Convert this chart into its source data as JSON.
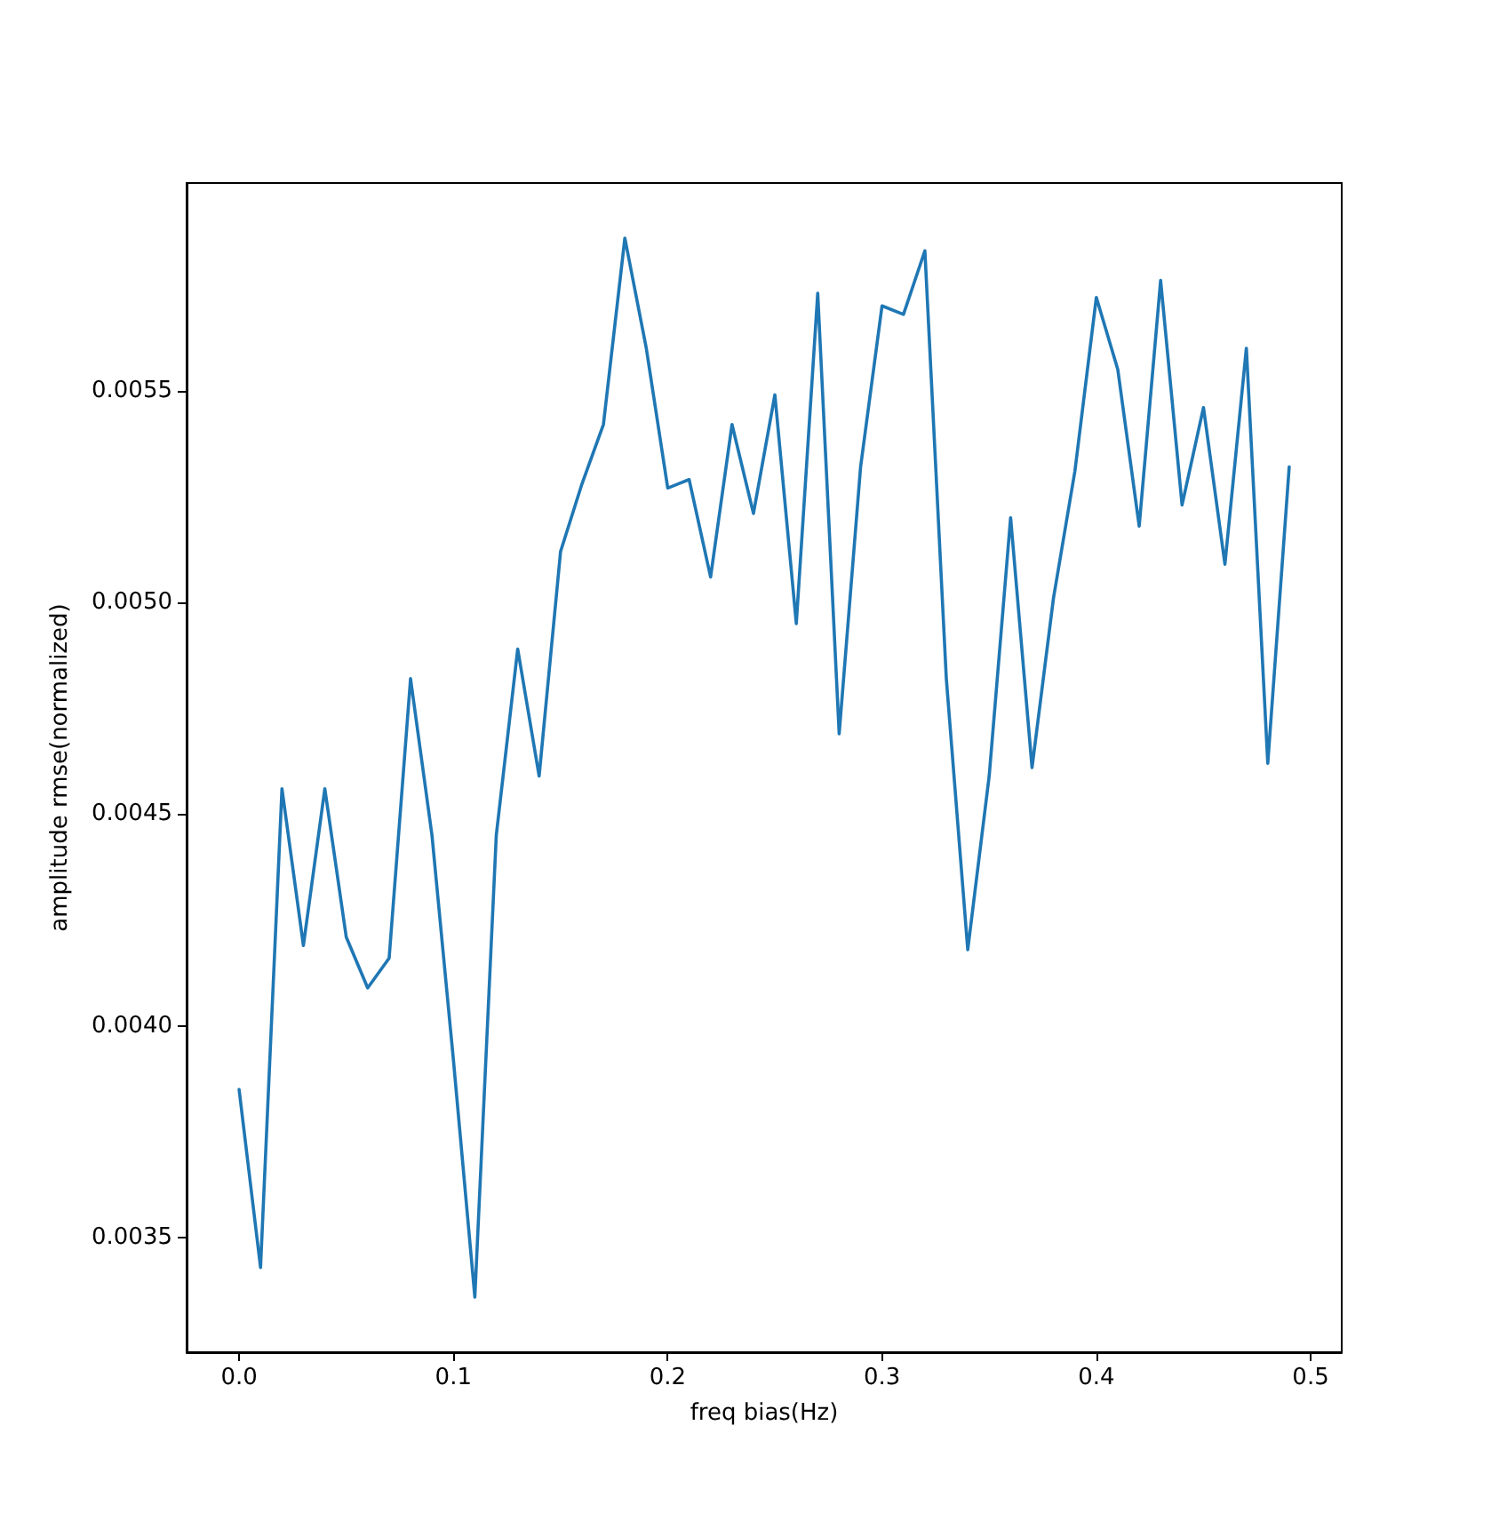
{
  "chart_data": {
    "type": "line",
    "xlabel": "freq bias(Hz)",
    "ylabel": "amplitude rmse(normalized)",
    "x": [
      0,
      0.01,
      0.02,
      0.03,
      0.04,
      0.05,
      0.06,
      0.07,
      0.08,
      0.09,
      0.1,
      0.11,
      0.12,
      0.13,
      0.14,
      0.15,
      0.16,
      0.17,
      0.18,
      0.19,
      0.2,
      0.21,
      0.22,
      0.23,
      0.24,
      0.25,
      0.26,
      0.27,
      0.28,
      0.29,
      0.3,
      0.31,
      0.32,
      0.33,
      0.34,
      0.35,
      0.36,
      0.37,
      0.38,
      0.39,
      0.4,
      0.41,
      0.42,
      0.43,
      0.44,
      0.45,
      0.46,
      0.47,
      0.48,
      0.49
    ],
    "series": [
      {
        "color": "#1f77b4",
        "values": [
          0.00385,
          0.00343,
          0.00456,
          0.00419,
          0.00456,
          0.00421,
          0.00409,
          0.00416,
          0.00482,
          0.00445,
          0.00392,
          0.00336,
          0.00445,
          0.00489,
          0.00459,
          0.00512,
          0.00528,
          0.00542,
          0.00586,
          0.0056,
          0.00527,
          0.00529,
          0.00506,
          0.00542,
          0.00521,
          0.00549,
          0.00495,
          0.00573,
          0.00469,
          0.00532,
          0.0057,
          0.00568,
          0.00583,
          0.00482,
          0.00418,
          0.00459,
          0.0052,
          0.00461,
          0.00501,
          0.00531,
          0.00572,
          0.00555,
          0.00518,
          0.00576,
          0.00523,
          0.00546,
          0.00509,
          0.0056,
          0.00462,
          0.00532
        ]
      }
    ],
    "xlim": [
      -0.0245,
      0.5145
    ],
    "xticks": [
      {
        "value": 0,
        "label": "0.0"
      },
      0.1,
      0.2,
      0.3,
      0.4,
      {
        "value": 0.5,
        "label": "0.5"
      }
    ],
    "ylim": [
      0.00323,
      0.00599
    ],
    "yticks": [
      {
        "value": 0.0035,
        "label": "0.0035"
      },
      {
        "value": 0.004,
        "label": "0.0040"
      },
      {
        "value": 0.0045,
        "label": "0.0045"
      },
      {
        "value": 0.005,
        "label": "0.0050"
      },
      {
        "value": 0.0055,
        "label": "0.0055"
      }
    ],
    "grid": false,
    "marker": "none",
    "line_style": "solid"
  }
}
